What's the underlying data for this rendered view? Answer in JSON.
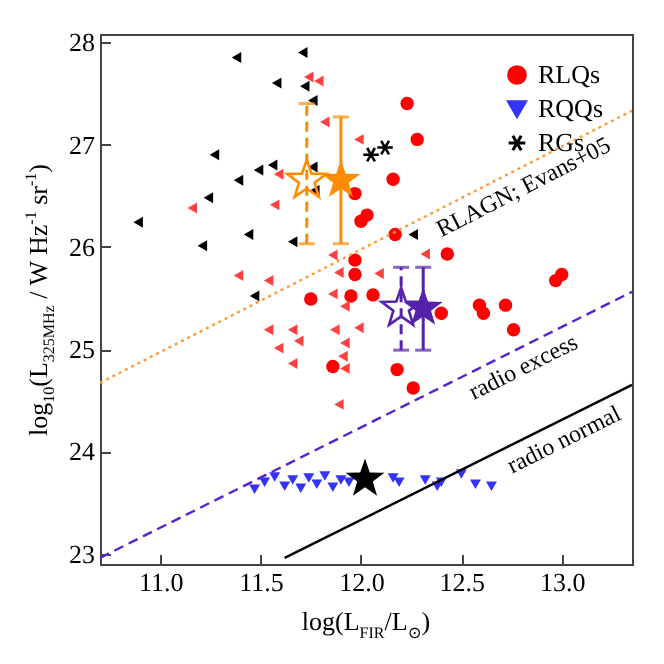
{
  "chart_data": {
    "type": "scatter",
    "xlabel": "log(L$_{FIR}$/L$_{⊙}$)",
    "ylabel": "log$_{10}$(L$_{325MHz}$ / W Hz$^{-1}$ sr$^{-1}$)",
    "xlim": [
      10.7,
      13.35
    ],
    "ylim": [
      22.9,
      28.08
    ],
    "xticks": [
      {
        "value": 11,
        "label": "11.0"
      },
      11.5,
      {
        "value": 12,
        "label": "12.0"
      },
      12.5,
      {
        "value": 13,
        "label": "13.0"
      }
    ],
    "yticks": [
      23,
      24,
      25,
      26,
      27,
      28
    ],
    "grid": false,
    "legend": "top right",
    "series": [
      {
        "name": "RLQs",
        "marker": "circle",
        "color": "#ff0000",
        "x": [
          11.97,
          12.03,
          12.0,
          11.97,
          11.97,
          11.95,
          12.06,
          11.75,
          12.23,
          12.28,
          12.16,
          12.17,
          12.43,
          12.97,
          13.0,
          12.4,
          12.59,
          12.61,
          12.72,
          12.76,
          12.18,
          12.26,
          11.86
        ],
        "values": [
          26.52,
          26.31,
          26.25,
          25.87,
          25.73,
          25.52,
          25.53,
          25.49,
          27.4,
          27.05,
          26.66,
          26.12,
          25.93,
          25.67,
          25.73,
          25.35,
          25.43,
          25.35,
          25.43,
          25.19,
          24.8,
          24.62,
          24.83
        ]
      },
      {
        "color": "#ff4040",
        "x": [
          11.74,
          11.79,
          11.82,
          11.99,
          11.59,
          11.16,
          11.57,
          11.86,
          11.89,
          11.39,
          11.54,
          11.86,
          11.92,
          11.54,
          11.66,
          11.87,
          11.99,
          11.59,
          11.69,
          11.92,
          11.66,
          11.91,
          11.92,
          11.89,
          12.32,
          12.09
        ],
        "values": [
          27.66,
          27.62,
          27.22,
          27.05,
          26.71,
          26.38,
          26.41,
          25.92,
          25.75,
          25.72,
          25.67,
          25.54,
          25.42,
          25.19,
          25.19,
          25.19,
          25.21,
          25.01,
          25.08,
          25.06,
          24.86,
          24.93,
          24.81,
          24.46,
          25.93,
          25.74
        ]
      },
      {
        "name": "RQQs",
        "marker": "triangle",
        "color": "#3333ff",
        "x": [
          11.47,
          11.52,
          11.57,
          11.62,
          11.66,
          11.7,
          11.74,
          11.78,
          11.82,
          11.86,
          11.9,
          11.94,
          12.16,
          12.19,
          12.32,
          12.38,
          12.4,
          12.5,
          12.57,
          12.65
        ],
        "values": [
          23.63,
          23.7,
          23.75,
          23.66,
          23.72,
          23.64,
          23.74,
          23.68,
          23.76,
          23.65,
          23.72,
          23.7,
          23.74,
          23.7,
          23.72,
          23.66,
          23.7,
          23.78,
          23.68,
          23.66
        ]
      },
      {
        "name": "RGs",
        "marker": "cross",
        "color": "#000000",
        "x": [
          12.05,
          12.12
        ],
        "values": [
          26.9,
          26.97
        ]
      },
      {
        "color": "#000000",
        "x": [
          11.38,
          11.71,
          11.58,
          11.72,
          11.76,
          11.27,
          11.56,
          11.49,
          11.39,
          11.76,
          11.24,
          10.89,
          11.44,
          11.21,
          11.66,
          11.77,
          11.47,
          12.26
        ],
        "values": [
          27.85,
          27.9,
          27.6,
          27.57,
          27.43,
          26.9,
          26.8,
          26.75,
          26.65,
          26.78,
          26.48,
          26.24,
          26.12,
          26.01,
          26.05,
          26.55,
          25.52,
          26.12
        ]
      },
      {
        "marker": "star",
        "color": "#ff8c00",
        "x": [
          11.9
        ],
        "values": [
          26.65
        ],
        "errors": [
          [
            26.03,
            27.27
          ]
        ]
      },
      {
        "marker": "star",
        "line_style": "dashed",
        "color": "#ff8c00",
        "x": [
          11.73
        ],
        "values": [
          26.65
        ],
        "errors": [
          [
            26.03,
            27.4
          ]
        ]
      },
      {
        "marker": "star",
        "color": "#5522aa",
        "x": [
          12.31
        ],
        "values": [
          25.4
        ],
        "errors": [
          [
            24.99,
            25.8
          ]
        ]
      },
      {
        "marker": "star",
        "line_style": "dashed",
        "color": "#5522aa",
        "x": [
          12.2
        ],
        "values": [
          25.4
        ],
        "errors": [
          [
            24.99,
            25.8
          ]
        ]
      },
      {
        "marker": "star",
        "color": "#000000",
        "x": [
          12.02
        ],
        "values": [
          23.73
        ]
      },
      {
        "name": "RLAGN; Evans+05",
        "type": "line",
        "line_style": "dotted",
        "color": "#ff9933",
        "x": [
          10.7,
          13.35
        ],
        "values": [
          24.67,
          27.33
        ]
      },
      {
        "name": "radio excess",
        "type": "line",
        "line_style": "dashed",
        "color": "#5522cc",
        "x": [
          10.7,
          13.35
        ],
        "values": [
          22.96,
          25.56
        ]
      },
      {
        "name": "radio normal",
        "type": "line",
        "line_style": "solid",
        "color": "#000000",
        "x": [
          11.62,
          13.35
        ],
        "values": [
          22.96,
          24.65
        ]
      }
    ]
  }
}
